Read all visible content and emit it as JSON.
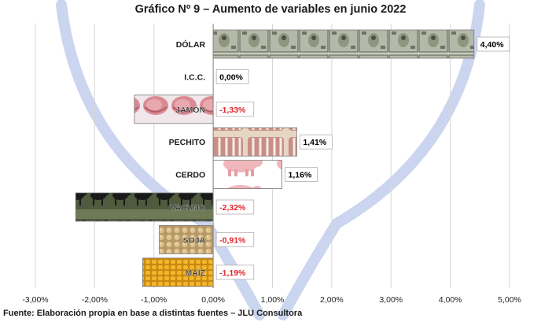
{
  "title": "Gráfico Nº 9 – Aumento de variables en junio 2022",
  "source": "Fuente: Elaboración propia en base a distintas fuentes – JLU Consultora",
  "chart_data": {
    "type": "bar",
    "orientation": "horizontal",
    "categories": [
      "DÓLAR",
      "I.C.C.",
      "JAMÓN",
      "PECHITO",
      "CERDO",
      "VACUNO",
      "SOJA",
      "MAÍZ"
    ],
    "values": [
      4.4,
      0.0,
      -1.33,
      1.41,
      1.16,
      -2.32,
      -0.91,
      -1.19
    ],
    "data_labels": [
      "4,40%",
      "0,00%",
      "-1,33%",
      "1,41%",
      "1,16%",
      "-2,32%",
      "-0,91%",
      "-1,19%"
    ],
    "xlim": [
      -3.0,
      5.0
    ],
    "x_ticks": [
      -3,
      -2,
      -1,
      0,
      1,
      2,
      3,
      4,
      5
    ],
    "x_tick_labels": [
      "-3,00%",
      "-2,00%",
      "-1,00%",
      "0,00%",
      "1,00%",
      "2,00%",
      "3,00%",
      "4,00%",
      "5,00%"
    ],
    "gridlines": "vertical",
    "legend": "none",
    "bar_fills": [
      "dollar-bill-icon",
      "none",
      "ham-icon",
      "ribs-icon",
      "pig-icon",
      "cattle-icon",
      "soybean-icon",
      "corn-icon"
    ],
    "colors": {
      "positive_label": "#000000",
      "negative_label": "#e0262a",
      "grid": "#d6d6d6",
      "watermark": "#b9c7ea"
    }
  }
}
